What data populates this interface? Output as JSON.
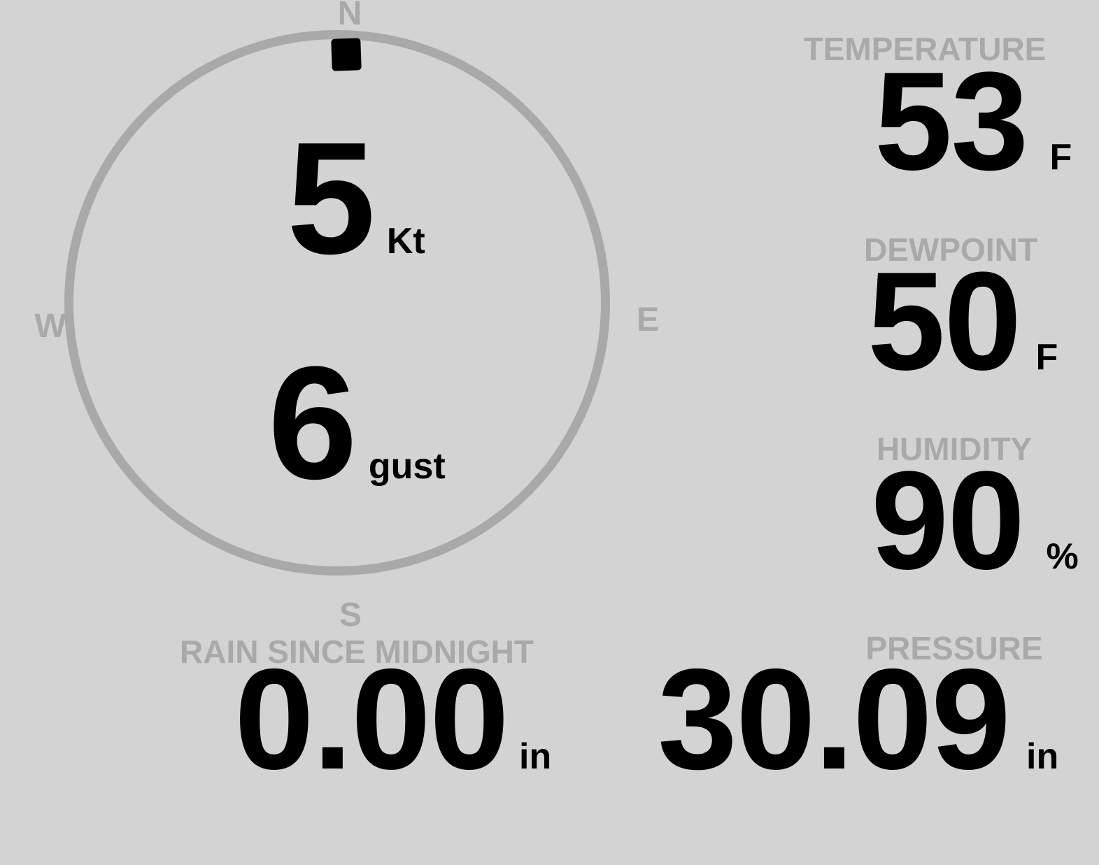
{
  "colors": {
    "background": "#d3d3d3",
    "muted": "#a9a9a9",
    "ink": "#000000"
  },
  "compass": {
    "cardinal": {
      "north": "N",
      "east": "E",
      "south": "S",
      "west": "W"
    },
    "wind_direction": "N",
    "speed": {
      "value": "5",
      "unit": "Kt"
    },
    "gust": {
      "value": "6",
      "unit": "gust"
    }
  },
  "metrics": {
    "temperature": {
      "label": "TEMPERATURE",
      "value": "53",
      "unit": "F"
    },
    "dewpoint": {
      "label": "DEWPOINT",
      "value": "50",
      "unit": "F"
    },
    "humidity": {
      "label": "HUMIDITY",
      "value": "90",
      "unit": "%"
    },
    "rain_since_midnight": {
      "label": "RAIN SINCE MIDNIGHT",
      "value": "0.00",
      "unit": "in"
    },
    "pressure": {
      "label": "PRESSURE",
      "value": "30.09",
      "unit": "in"
    }
  }
}
